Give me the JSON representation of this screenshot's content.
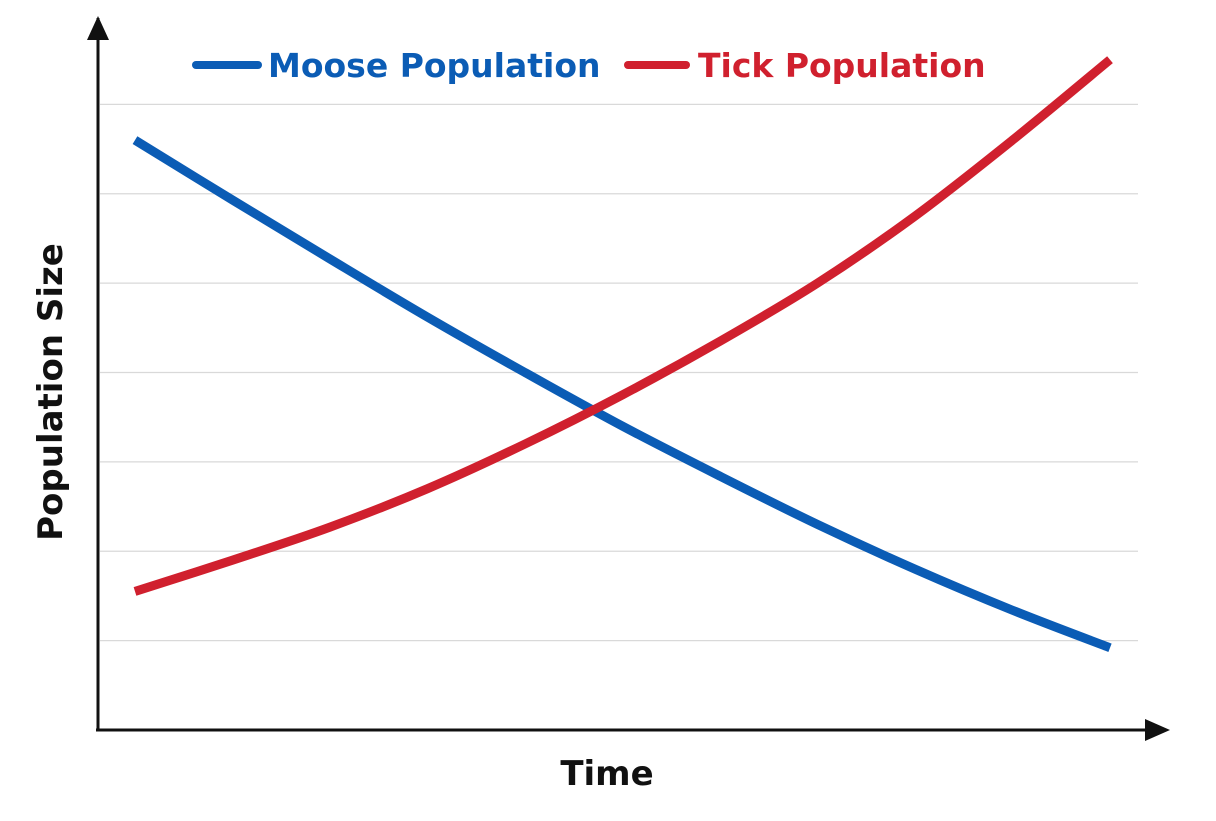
{
  "chart_data": {
    "type": "line",
    "title": "",
    "xlabel": "Time",
    "ylabel": "Population Size",
    "x": [
      0,
      1,
      2,
      3,
      4,
      5,
      6,
      7,
      8,
      9,
      10
    ],
    "xlim": [
      0,
      10
    ],
    "ylim": [
      0,
      8
    ],
    "grid": true,
    "tick_labels_shown": false,
    "legend_position": "top",
    "series": [
      {
        "name": "Moose Population",
        "color": "#0b5cb5",
        "values": [
          6.6,
          5.93,
          5.27,
          4.62,
          4.0,
          3.4,
          2.84,
          2.3,
          1.8,
          1.34,
          0.92
        ]
      },
      {
        "name": "Tick Population",
        "color": "#d0202e",
        "values": [
          1.55,
          1.9,
          2.27,
          2.7,
          3.2,
          3.75,
          4.35,
          5.0,
          5.75,
          6.6,
          7.5
        ]
      }
    ]
  },
  "colors": {
    "axis": "#111111",
    "grid": "#d9d9d9"
  }
}
